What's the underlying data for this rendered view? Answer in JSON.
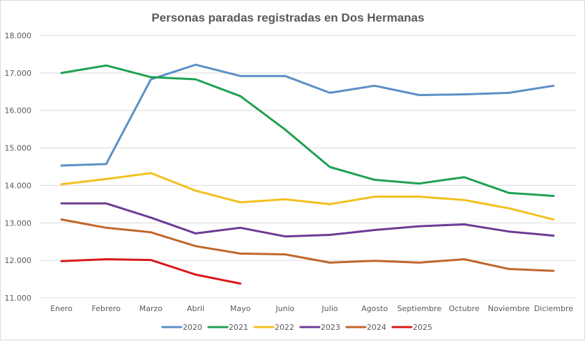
{
  "chart_data": {
    "type": "line",
    "title": "Personas paradas registradas en Dos Hermanas",
    "xlabel": "",
    "ylabel": "",
    "ylim": [
      11000,
      18000
    ],
    "yticks": [
      11000,
      12000,
      13000,
      14000,
      15000,
      16000,
      17000,
      18000
    ],
    "ytick_labels": [
      "11.000",
      "12.000",
      "13.000",
      "14.000",
      "15.000",
      "16.000",
      "17.000",
      "18.000"
    ],
    "grid": true,
    "legend_position": "bottom",
    "categories": [
      "Enero",
      "Febrero",
      "Marzo",
      "Abril",
      "Mayo",
      "Junio",
      "Julio",
      "Agosto",
      "Septiembre",
      "Octubre",
      "Noviembre",
      "Diciembre"
    ],
    "series": [
      {
        "name": "2020",
        "color": "#5b8fc7",
        "values": [
          14530,
          14570,
          16830,
          17220,
          16920,
          16920,
          16470,
          16660,
          16410,
          16430,
          16470,
          16660
        ]
      },
      {
        "name": "2021",
        "color": "#1fa052",
        "values": [
          17000,
          17200,
          16890,
          16830,
          16380,
          15490,
          14490,
          14150,
          14050,
          14220,
          13800,
          13720
        ]
      },
      {
        "name": "2022",
        "color": "#f2c01e",
        "values": [
          14030,
          14170,
          14330,
          13860,
          13550,
          13630,
          13500,
          13700,
          13700,
          13610,
          13390,
          13090
        ]
      },
      {
        "name": "2023",
        "color": "#6e3a96",
        "values": [
          13520,
          13520,
          13140,
          12720,
          12870,
          12640,
          12680,
          12810,
          12910,
          12960,
          12770,
          12660
        ]
      },
      {
        "name": "2024",
        "color": "#c0662a",
        "values": [
          13090,
          12870,
          12750,
          12380,
          12180,
          12160,
          11940,
          11990,
          11940,
          12030,
          11770,
          11720
        ]
      },
      {
        "name": "2025",
        "color": "#d9181c",
        "values": [
          11980,
          12030,
          12010,
          11620,
          11380,
          null,
          null,
          null,
          null,
          null,
          null,
          null
        ]
      }
    ]
  }
}
